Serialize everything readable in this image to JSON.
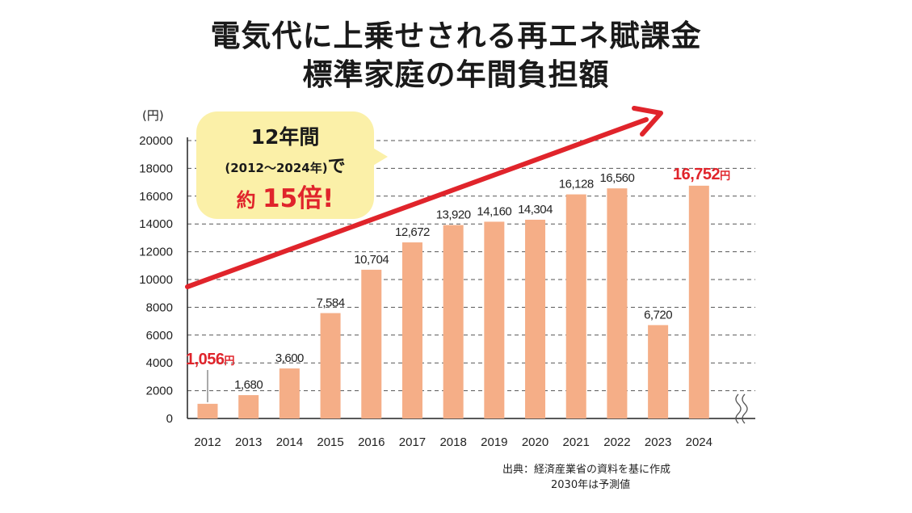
{
  "title": {
    "line1": "電気代に上乗せされる再エネ賦課金",
    "line2": "標準家庭の年間負担額"
  },
  "y_unit": "(円)",
  "callout": {
    "line1": "12年間",
    "line2": "(2012～2024年)",
    "line2_suffix": "で",
    "line3_prefix": "約",
    "line3_value": "15倍!"
  },
  "source": {
    "line1": "出典：経済産業省の資料を基に作成",
    "line2": "2030年は予測値"
  },
  "colors": {
    "bar": "#f5ae87",
    "arrow": "#e0242b",
    "highlight_label": "#e0242b",
    "callout_bg": "#fbf0a8",
    "grid": "#555555"
  },
  "chart_data": {
    "type": "bar",
    "title": "電気代に上乗せされる再エネ賦課金 標準家庭の年間負担額",
    "xlabel": "",
    "ylabel": "(円)",
    "ylim": [
      0,
      20000
    ],
    "yticks": [
      "0",
      "2000",
      "4000",
      "6000",
      "8000",
      "10000",
      "12000",
      "14000",
      "16000",
      "18000",
      "20000"
    ],
    "grid": "horizontal dashed",
    "axis_break": "right side of x-axis",
    "categories": [
      "2012",
      "2013",
      "2014",
      "2015",
      "2016",
      "2017",
      "2018",
      "2019",
      "2020",
      "2021",
      "2022",
      "2023",
      "2024"
    ],
    "values": [
      1056,
      1680,
      3600,
      7584,
      10704,
      12672,
      13920,
      14160,
      14304,
      16128,
      16560,
      6720,
      16752
    ],
    "value_labels": [
      "1,056",
      "1,680",
      "3,600",
      "7,584",
      "10,704",
      "12,672",
      "13,920",
      "14,160",
      "14,304",
      "16,128",
      "16,560",
      "6,720",
      "16,752"
    ],
    "highlighted_labels_suffix": "円",
    "highlighted_indices": [
      0,
      12
    ],
    "annotations": [
      "trend arrow rising from 2012 to 2024"
    ]
  }
}
